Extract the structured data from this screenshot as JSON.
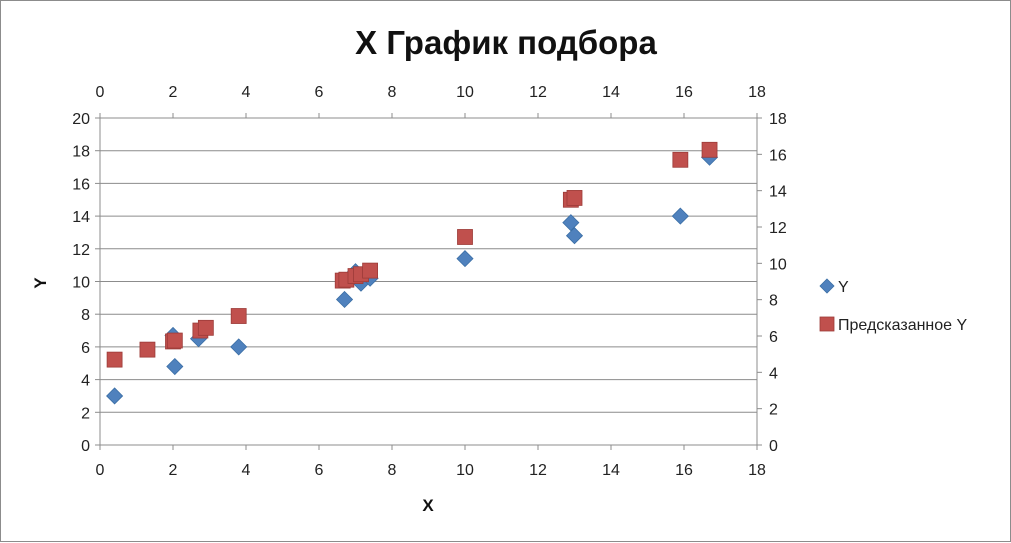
{
  "chart_data": {
    "type": "scatter",
    "title": "X График подбора",
    "xlabel": "X",
    "ylabel": "Y",
    "xlim": [
      0,
      18
    ],
    "ylim": [
      0,
      20
    ],
    "secondary_ylim": [
      0,
      18
    ],
    "x_ticks": [
      "0",
      "2",
      "4",
      "6",
      "8",
      "10",
      "12",
      "14",
      "16",
      "18"
    ],
    "y_ticks": [
      "0",
      "2",
      "4",
      "6",
      "8",
      "10",
      "12",
      "14",
      "16",
      "18",
      "20"
    ],
    "secondary_x_ticks": [
      "0",
      "2",
      "4",
      "6",
      "8",
      "10",
      "12",
      "14",
      "16",
      "18"
    ],
    "secondary_y_ticks": [
      "0",
      "2",
      "4",
      "6",
      "8",
      "10",
      "12",
      "14",
      "16",
      "18"
    ],
    "grid": true,
    "legend_position": "right",
    "series": [
      {
        "name": "Y",
        "color": "#4f81bd",
        "marker": "diamond",
        "points": [
          [
            0.4,
            3.0
          ],
          [
            2.0,
            6.7
          ],
          [
            2.05,
            4.8
          ],
          [
            2.7,
            6.5
          ],
          [
            3.8,
            6.0
          ],
          [
            6.7,
            8.9
          ],
          [
            7.0,
            10.6
          ],
          [
            7.15,
            9.9
          ],
          [
            7.4,
            10.2
          ],
          [
            10.0,
            11.4
          ],
          [
            12.9,
            13.6
          ],
          [
            13.0,
            12.8
          ],
          [
            15.9,
            14.0
          ],
          [
            16.7,
            17.6
          ]
        ]
      },
      {
        "name": "Предсказанное Y",
        "color": "#c0504d",
        "marker": "square",
        "points": [
          [
            0.4,
            4.7
          ],
          [
            1.3,
            5.25
          ],
          [
            2.0,
            5.7
          ],
          [
            2.05,
            5.75
          ],
          [
            2.75,
            6.3
          ],
          [
            2.9,
            6.45
          ],
          [
            3.8,
            7.1
          ],
          [
            6.65,
            9.05
          ],
          [
            6.75,
            9.1
          ],
          [
            7.0,
            9.3
          ],
          [
            7.15,
            9.4
          ],
          [
            7.4,
            9.6
          ],
          [
            10.0,
            11.45
          ],
          [
            12.9,
            13.5
          ],
          [
            13.0,
            13.6
          ],
          [
            15.9,
            15.7
          ],
          [
            16.7,
            16.25
          ]
        ]
      }
    ]
  }
}
